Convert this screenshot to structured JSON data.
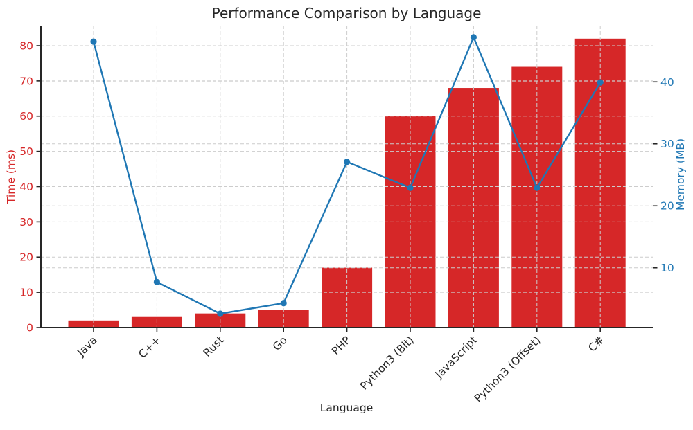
{
  "figure": {
    "title": "Performance Comparison by Language",
    "xlabel": "Language",
    "ylabel_left": "Time (ms)",
    "ylabel_right": "Memory (MB)"
  },
  "chart_data": {
    "type": "bar",
    "subtype": "combo-bar-line-dual-axis",
    "title": "Performance Comparison by Language",
    "xlabel": "Language",
    "categories": [
      "Java",
      "C++",
      "Rust",
      "Go",
      "PHP",
      "Python3 (Bit)",
      "JavaScript",
      "Python3 (Offset)",
      "C#"
    ],
    "series": [
      {
        "name": "Time (ms)",
        "type": "bar",
        "axis": "left",
        "color": "#d62728",
        "values": [
          2,
          3,
          4,
          5,
          17,
          60,
          68,
          74,
          82
        ]
      },
      {
        "name": "Memory (MB)",
        "type": "line",
        "axis": "right",
        "color": "#1f77b4",
        "marker": "circle",
        "values": [
          46.5,
          7.7,
          2.6,
          4.3,
          27.1,
          22.9,
          47.2,
          22.9,
          39.9
        ]
      }
    ],
    "axes": {
      "left": {
        "label": "Time (ms)",
        "color": "#d62728",
        "ticks": [
          0,
          10,
          20,
          30,
          40,
          50,
          60,
          70,
          80
        ],
        "range": [
          0,
          85.7
        ]
      },
      "right": {
        "label": "Memory (MB)",
        "color": "#1f77b4",
        "ticks": [
          10,
          20,
          30,
          40
        ],
        "range": [
          0.36,
          49.08
        ]
      }
    },
    "grid": {
      "show": true,
      "style": "dashed",
      "color": "#cccccc",
      "vertical": true,
      "horizontal": "both-axes"
    },
    "legend": "none",
    "spines": {
      "top": false,
      "right": false,
      "left": true,
      "bottom": true,
      "color": "#262626"
    }
  },
  "style_colors": {
    "background": "#ffffff",
    "bar_red": "#d62728",
    "line_blue": "#1f77b4",
    "text_dark": "#262626",
    "grid_gray": "#cccccc"
  }
}
